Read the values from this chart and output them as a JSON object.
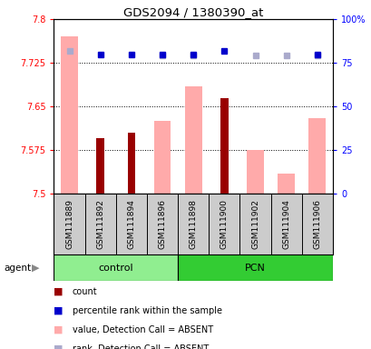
{
  "title": "GDS2094 / 1380390_at",
  "samples": [
    "GSM111889",
    "GSM111892",
    "GSM111894",
    "GSM111896",
    "GSM111898",
    "GSM111900",
    "GSM111902",
    "GSM111904",
    "GSM111906"
  ],
  "groups": [
    {
      "name": "control",
      "indices": [
        0,
        1,
        2,
        3
      ],
      "color": "#90ee90"
    },
    {
      "name": "PCN",
      "indices": [
        4,
        5,
        6,
        7,
        8
      ],
      "color": "#33cc33"
    }
  ],
  "ylim_left": [
    7.5,
    7.8
  ],
  "yticks_left": [
    7.5,
    7.575,
    7.65,
    7.725,
    7.8
  ],
  "ytick_labels_left": [
    "7.5",
    "7.575",
    "7.65",
    "7.725",
    "7.8"
  ],
  "ylim_right": [
    0,
    100
  ],
  "yticks_right": [
    0,
    25,
    50,
    75,
    100
  ],
  "ytick_labels_right": [
    "0",
    "25",
    "50",
    "75",
    "100%"
  ],
  "count_values": [
    null,
    7.595,
    7.605,
    null,
    null,
    7.665,
    null,
    null,
    null
  ],
  "count_color": "#990000",
  "value_absent_values": [
    7.77,
    null,
    null,
    7.625,
    7.685,
    null,
    7.575,
    7.535,
    7.63
  ],
  "value_absent_color": "#ffaaaa",
  "percentile_rank_values": [
    null,
    80,
    80,
    80,
    80,
    82,
    null,
    null,
    80
  ],
  "percentile_rank_color": "#0000cc",
  "rank_absent_values": [
    82,
    null,
    null,
    79,
    79,
    null,
    79,
    79,
    79
  ],
  "rank_absent_color": "#aaaacc",
  "legend_items": [
    {
      "color": "#990000",
      "label": "count"
    },
    {
      "color": "#0000cc",
      "label": "percentile rank within the sample"
    },
    {
      "color": "#ffaaaa",
      "label": "value, Detection Call = ABSENT"
    },
    {
      "color": "#aaaacc",
      "label": "rank, Detection Call = ABSENT"
    }
  ]
}
